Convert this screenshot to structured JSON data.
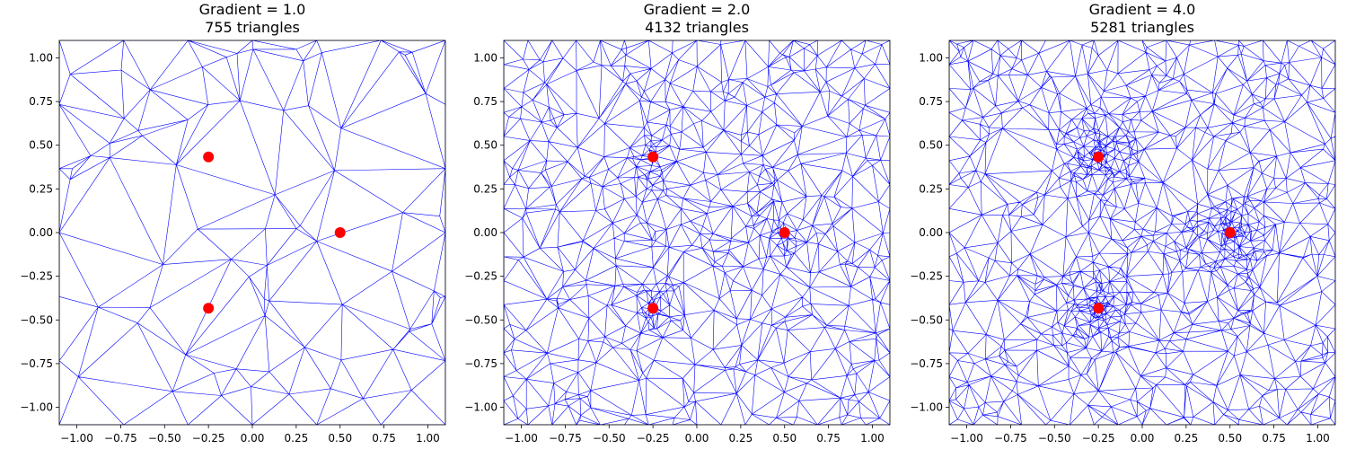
{
  "chart_data": [
    {
      "type": "triangulation-mesh",
      "title_line1": "Gradient = 1.0",
      "title_line2": "755 triangles",
      "xlim": [
        -1.1,
        1.1
      ],
      "ylim": [
        -1.1,
        1.1
      ],
      "xticks": [
        -1.0,
        -0.75,
        -0.5,
        -0.25,
        0.0,
        0.25,
        0.5,
        0.75,
        1.0
      ],
      "yticks": [
        -1.0,
        -0.75,
        -0.5,
        -0.25,
        0.0,
        0.25,
        0.5,
        0.75,
        1.0
      ],
      "xtick_labels": [
        "−1.00",
        "−0.75",
        "−0.50",
        "−0.25",
        "0.00",
        "0.25",
        "0.50",
        "0.75",
        "1.00"
      ],
      "ytick_labels": [
        "−1.00",
        "−0.75",
        "−0.50",
        "−0.25",
        "0.00",
        "0.25",
        "0.50",
        "0.75",
        "1.00"
      ],
      "grid": false,
      "mesh_color": "#0000ff",
      "point_color": "#ff0000",
      "refinement_points": [
        [
          -0.25,
          0.433
        ],
        [
          0.5,
          0.0
        ],
        [
          -0.25,
          -0.433
        ]
      ]
    },
    {
      "type": "triangulation-mesh",
      "title_line1": "Gradient = 2.0",
      "title_line2": "4132 triangles",
      "xlim": [
        -1.1,
        1.1
      ],
      "ylim": [
        -1.1,
        1.1
      ],
      "xticks": [
        -1.0,
        -0.75,
        -0.5,
        -0.25,
        0.0,
        0.25,
        0.5,
        0.75,
        1.0
      ],
      "yticks": [
        -1.0,
        -0.75,
        -0.5,
        -0.25,
        0.0,
        0.25,
        0.5,
        0.75,
        1.0
      ],
      "xtick_labels": [
        "−1.00",
        "−0.75",
        "−0.50",
        "−0.25",
        "0.00",
        "0.25",
        "0.50",
        "0.75",
        "1.00"
      ],
      "ytick_labels": [
        "−1.00",
        "−0.75",
        "−0.50",
        "−0.25",
        "0.00",
        "0.25",
        "0.50",
        "0.75",
        "1.00"
      ],
      "grid": false,
      "mesh_color": "#0000ff",
      "point_color": "#ff0000",
      "refinement_points": [
        [
          -0.25,
          0.433
        ],
        [
          0.5,
          0.0
        ],
        [
          -0.25,
          -0.433
        ]
      ]
    },
    {
      "type": "triangulation-mesh",
      "title_line1": "Gradient = 4.0",
      "title_line2": "5281 triangles",
      "xlim": [
        -1.1,
        1.1
      ],
      "ylim": [
        -1.1,
        1.1
      ],
      "xticks": [
        -1.0,
        -0.75,
        -0.5,
        -0.25,
        0.0,
        0.25,
        0.5,
        0.75,
        1.0
      ],
      "yticks": [
        -1.0,
        -0.75,
        -0.5,
        -0.25,
        0.0,
        0.25,
        0.5,
        0.75,
        1.0
      ],
      "xtick_labels": [
        "−1.00",
        "−0.75",
        "−0.50",
        "−0.25",
        "0.00",
        "0.25",
        "0.50",
        "0.75",
        "1.00"
      ],
      "ytick_labels": [
        "−1.00",
        "−0.75",
        "−0.50",
        "−0.25",
        "0.00",
        "0.25",
        "0.50",
        "0.75",
        "1.00"
      ],
      "grid": false,
      "mesh_color": "#0000ff",
      "point_color": "#ff0000",
      "refinement_points": [
        [
          -0.25,
          0.433
        ],
        [
          0.5,
          0.0
        ],
        [
          -0.25,
          -0.433
        ]
      ]
    }
  ]
}
